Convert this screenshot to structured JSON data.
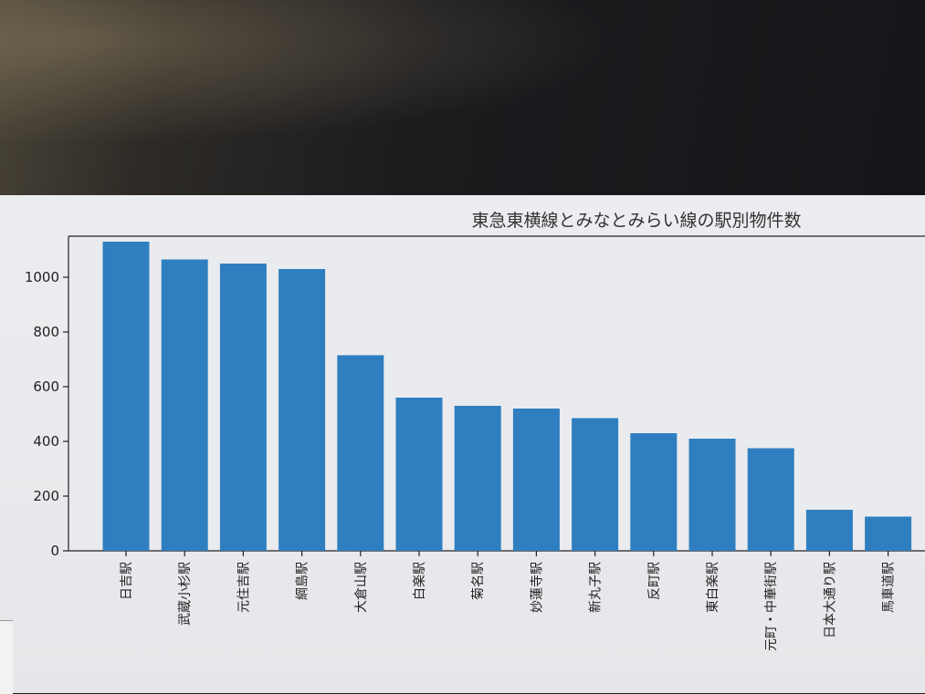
{
  "chart_data": {
    "type": "bar",
    "title": "東急東横線とみなとみらい線の駅別物件数",
    "xlabel": "",
    "ylabel": "",
    "categories": [
      "日吉駅",
      "武蔵小杉駅",
      "元住吉駅",
      "綱島駅",
      "大倉山駅",
      "白楽駅",
      "菊名駅",
      "妙蓮寺駅",
      "新丸子駅",
      "反町駅",
      "東白楽駅",
      "元町・中華街駅",
      "日本大通り駅",
      "馬車道駅"
    ],
    "values": [
      1130,
      1065,
      1050,
      1030,
      715,
      560,
      530,
      520,
      485,
      430,
      410,
      375,
      150,
      125
    ],
    "yticks": [
      0,
      200,
      400,
      600,
      800,
      1000
    ],
    "ytick_labels": [
      "0",
      "200",
      "400",
      "600",
      "800",
      "1000"
    ],
    "ylim": [
      0,
      1150
    ],
    "grid": false,
    "bar_color": "#2f7fc0"
  }
}
